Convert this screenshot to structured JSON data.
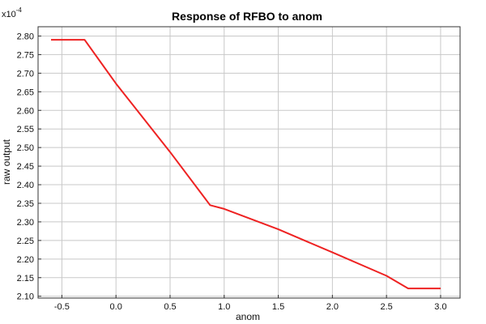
{
  "chart_data": {
    "type": "line",
    "title": "Response of RFBO to anom",
    "xlabel": "anom",
    "ylabel": "raw output",
    "y_multiplier_label": "x10",
    "y_multiplier_exponent": "-4",
    "xlim": [
      -0.72,
      3.18
    ],
    "ylim": [
      2.095,
      2.825
    ],
    "x_ticks": [
      -0.5,
      0.0,
      0.5,
      1.0,
      1.5,
      2.0,
      2.5,
      3.0
    ],
    "x_tick_labels": [
      "-0.5",
      "0.0",
      "0.5",
      "1.0",
      "1.5",
      "2.0",
      "2.5",
      "3.0"
    ],
    "y_ticks": [
      2.1,
      2.15,
      2.2,
      2.25,
      2.3,
      2.35,
      2.4,
      2.45,
      2.5,
      2.55,
      2.6,
      2.65,
      2.7,
      2.75,
      2.8
    ],
    "y_tick_labels": [
      "2.10",
      "2.15",
      "2.20",
      "2.25",
      "2.30",
      "2.35",
      "2.40",
      "2.45",
      "2.50",
      "2.55",
      "2.60",
      "2.65",
      "2.70",
      "2.75",
      "2.80"
    ],
    "grid": true,
    "series": [
      {
        "color": "#ee2222",
        "x": [
          -0.6,
          -0.29,
          0.0,
          0.5,
          0.87,
          1.0,
          1.5,
          2.0,
          2.5,
          2.7,
          3.0
        ],
        "y": [
          2.79,
          2.79,
          2.672,
          2.488,
          2.345,
          2.335,
          2.28,
          2.218,
          2.155,
          2.121,
          2.121
        ]
      }
    ]
  }
}
